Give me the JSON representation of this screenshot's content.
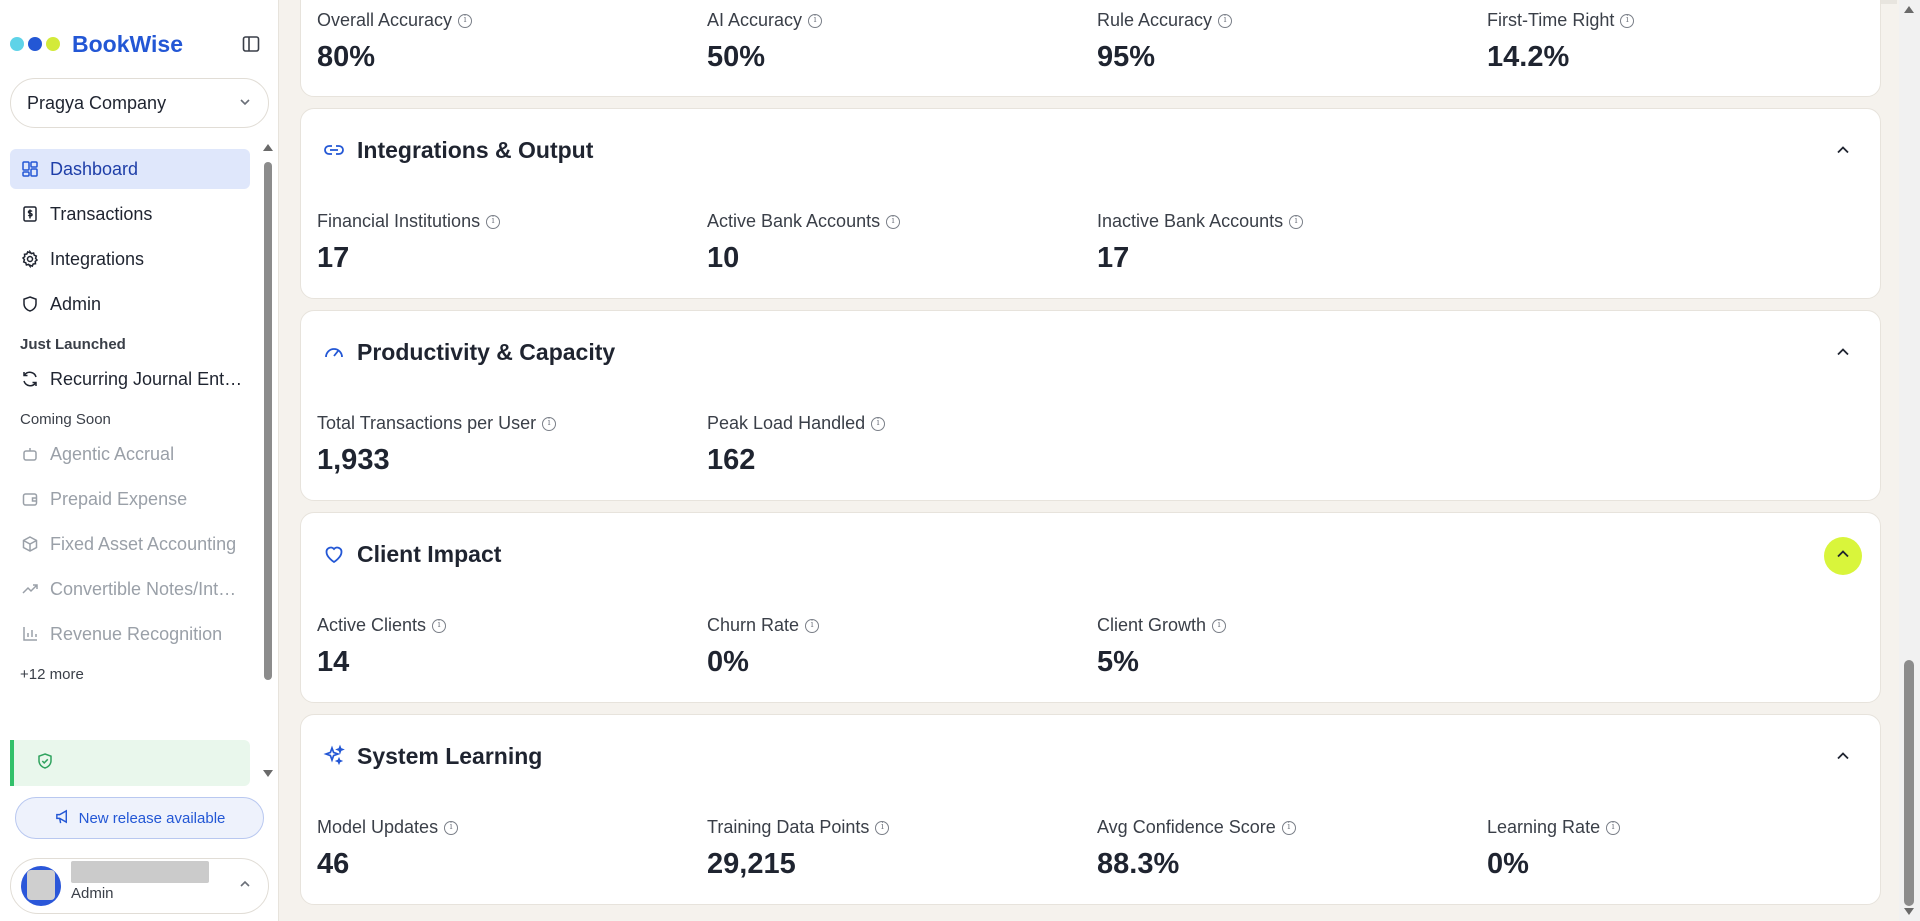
{
  "brand": {
    "name": "BookWise",
    "dot_colors": [
      "#5fd3e8",
      "#2357d5",
      "#d3ea3a"
    ]
  },
  "company": {
    "name": "Pragya Company"
  },
  "nav": {
    "items": [
      {
        "label": "Dashboard",
        "icon": "dashboard-icon"
      },
      {
        "label": "Transactions",
        "icon": "dollar-doc-icon"
      },
      {
        "label": "Integrations",
        "icon": "gear-icon"
      },
      {
        "label": "Admin",
        "icon": "shield-icon"
      }
    ],
    "just_launched_title": "Just Launched",
    "just_launched": [
      {
        "label": "Recurring Journal Ent…",
        "icon": "refresh-icon"
      }
    ],
    "coming_soon_title": "Coming Soon",
    "coming_soon": [
      {
        "label": "Agentic Accrual",
        "icon": "robot-icon"
      },
      {
        "label": "Prepaid Expense",
        "icon": "wallet-icon"
      },
      {
        "label": "Fixed Asset Accounting",
        "icon": "box-icon"
      },
      {
        "label": "Convertible Notes/Int…",
        "icon": "trend-icon"
      },
      {
        "label": "Revenue Recognition",
        "icon": "bar-chart-icon"
      }
    ],
    "more": "+12 more"
  },
  "release": {
    "label": "New release available"
  },
  "user": {
    "role": "Admin"
  },
  "sections": {
    "accuracy": {
      "metrics": [
        {
          "label": "Overall Accuracy",
          "value": "80%"
        },
        {
          "label": "AI Accuracy",
          "value": "50%"
        },
        {
          "label": "Rule Accuracy",
          "value": "95%"
        },
        {
          "label": "First-Time Right",
          "value": "14.2%"
        }
      ]
    },
    "integrations": {
      "title": "Integrations & Output",
      "metrics": [
        {
          "label": "Financial Institutions",
          "value": "17"
        },
        {
          "label": "Active Bank Accounts",
          "value": "10"
        },
        {
          "label": "Inactive Bank Accounts",
          "value": "17"
        }
      ]
    },
    "productivity": {
      "title": "Productivity & Capacity",
      "metrics": [
        {
          "label": "Total Transactions per User",
          "value": "1,933"
        },
        {
          "label": "Peak Load Handled",
          "value": "162"
        }
      ]
    },
    "client": {
      "title": "Client Impact",
      "metrics": [
        {
          "label": "Active Clients",
          "value": "14"
        },
        {
          "label": "Churn Rate",
          "value": "0%"
        },
        {
          "label": "Client Growth",
          "value": "5%"
        }
      ]
    },
    "learning": {
      "title": "System Learning",
      "metrics": [
        {
          "label": "Model Updates",
          "value": "46"
        },
        {
          "label": "Training Data Points",
          "value": "29,215"
        },
        {
          "label": "Avg Confidence Score",
          "value": "88.3%"
        },
        {
          "label": "Learning Rate",
          "value": "0%"
        }
      ]
    }
  },
  "colors": {
    "accent": "#2357d5",
    "highlight": "#d9f53b",
    "active_bg": "#dfe7fb",
    "success": "#33c06a"
  }
}
